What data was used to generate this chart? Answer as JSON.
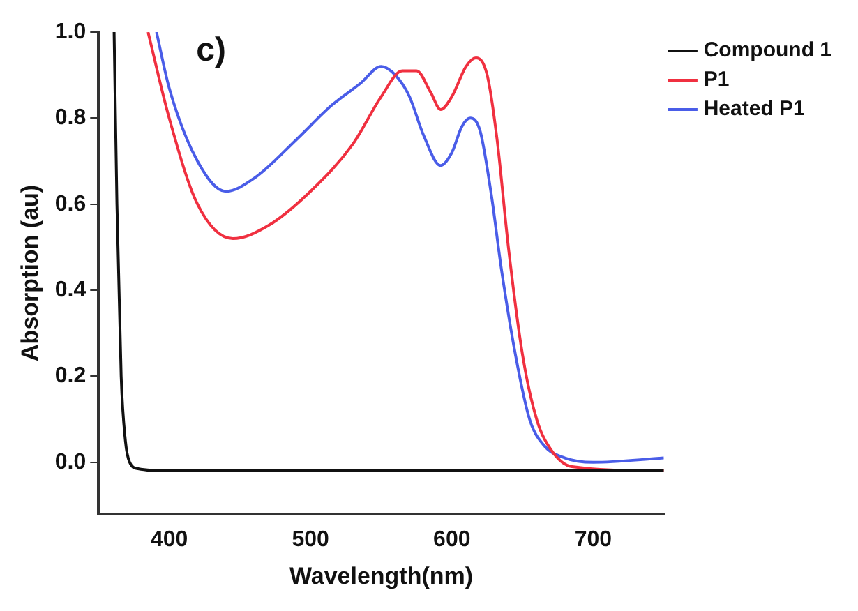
{
  "chart_data": {
    "type": "line",
    "xlabel": "Wavelength(nm)",
    "ylabel": "Absorption (au)",
    "annotations": [
      "c)"
    ],
    "xlim": [
      350,
      750
    ],
    "xticks": [
      400,
      500,
      600,
      700
    ],
    "ylim": [
      -0.12,
      1.0
    ],
    "yticks": [
      {
        "value": 0,
        "label": "0.0"
      },
      {
        "value": 0.2,
        "label": "0.2"
      },
      {
        "value": 0.4,
        "label": "0.4"
      },
      {
        "value": 0.6,
        "label": "0.6"
      },
      {
        "value": 0.8,
        "label": "0.8"
      },
      {
        "value": 1.0,
        "label": "1.0"
      }
    ],
    "grid": false,
    "legend": "top right",
    "marker": "none",
    "line_style": "solid",
    "series": [
      {
        "name": "Compound 1",
        "color": "#111111",
        "x": [
          361,
          363,
          366,
          369,
          372,
          378,
          400,
          500,
          600,
          750
        ],
        "values": [
          1.0,
          0.6,
          0.2,
          0.05,
          0.0,
          -0.015,
          -0.02,
          -0.02,
          -0.02,
          -0.02
        ]
      },
      {
        "name": "P1",
        "color": "#f03040",
        "x": [
          385,
          400,
          420,
          445,
          470,
          500,
          530,
          550,
          565,
          575,
          585,
          592,
          600,
          610,
          617,
          625,
          632,
          640,
          650,
          660,
          670,
          685,
          750
        ],
        "values": [
          1.0,
          0.8,
          0.6,
          0.52,
          0.55,
          0.63,
          0.74,
          0.85,
          0.91,
          0.91,
          0.86,
          0.82,
          0.85,
          0.92,
          0.94,
          0.9,
          0.75,
          0.5,
          0.25,
          0.1,
          0.03,
          -0.01,
          -0.02
        ]
      },
      {
        "name": "Heated P1",
        "color": "#4a5de8",
        "x": [
          391,
          400,
          420,
          440,
          460,
          490,
          515,
          535,
          550,
          560,
          570,
          580,
          592,
          600,
          607,
          613,
          620,
          628,
          635,
          645,
          655,
          665,
          680,
          700,
          750
        ],
        "values": [
          1.0,
          0.87,
          0.7,
          0.63,
          0.66,
          0.75,
          0.83,
          0.88,
          0.92,
          0.9,
          0.85,
          0.76,
          0.69,
          0.72,
          0.78,
          0.8,
          0.77,
          0.62,
          0.45,
          0.25,
          0.1,
          0.04,
          0.01,
          0.0,
          0.01
        ]
      }
    ]
  }
}
